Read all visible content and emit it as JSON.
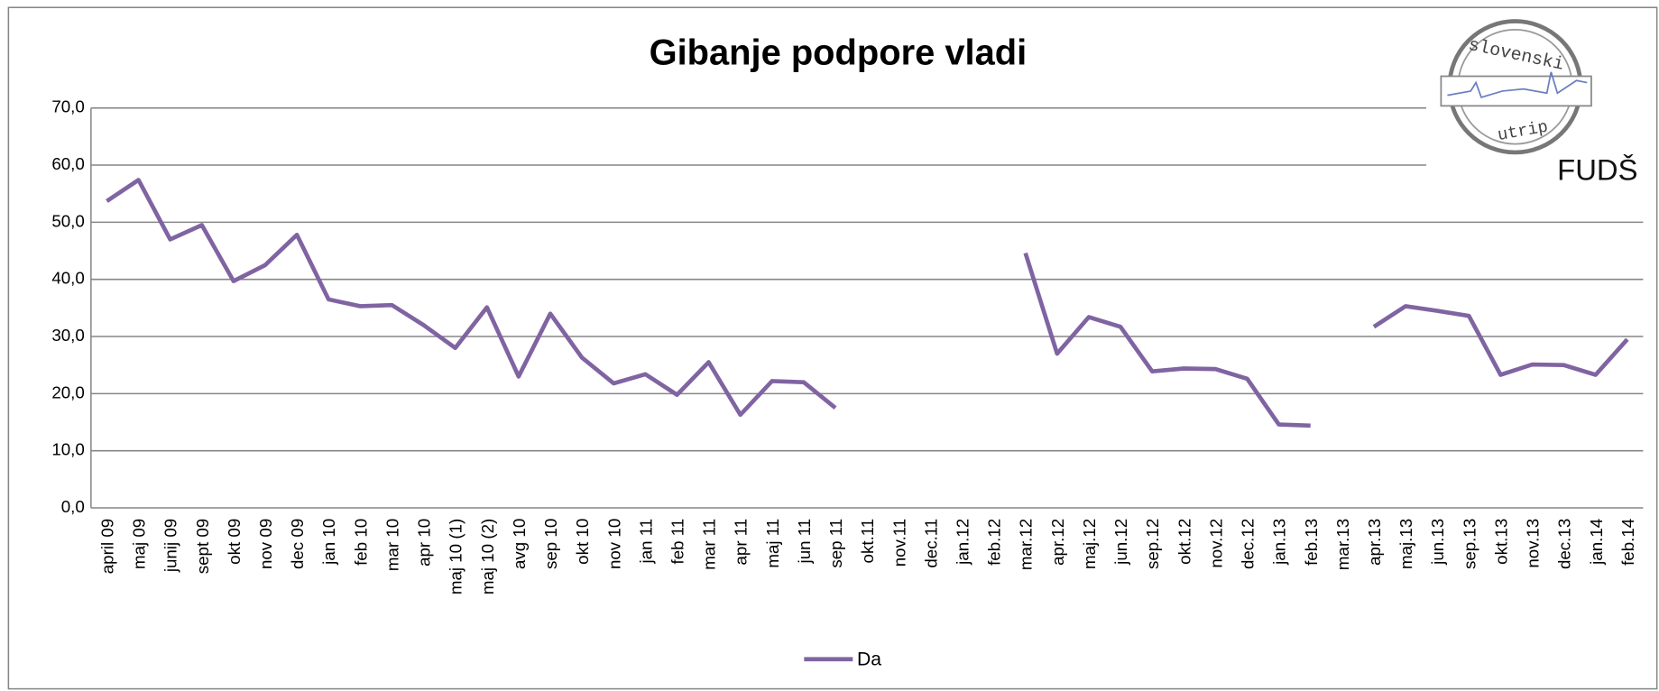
{
  "chart_data": {
    "type": "line",
    "title": "Gibanje podpore vladi",
    "logo": {
      "top": "slovenski",
      "bottom": "utrip",
      "brand": "FUDŠ"
    },
    "categories": [
      "april 09",
      "maj 09",
      "junij 09",
      "sept 09",
      "okt 09",
      "nov 09",
      "dec 09",
      "jan 10",
      "feb 10",
      "mar 10",
      "apr 10",
      "maj 10 (1)",
      "maj 10 (2)",
      "avg 10",
      "sep 10",
      "okt 10",
      "nov 10",
      "jan 11",
      "feb 11",
      "mar 11",
      "apr 11",
      "maj 11",
      "jun 11",
      "sep 11",
      "okt.11",
      "nov.11",
      "dec.11",
      "jan.12",
      "feb.12",
      "mar.12",
      "apr.12",
      "maj.12",
      "jun.12",
      "sep.12",
      "okt.12",
      "nov.12",
      "dec.12",
      "jan.13",
      "feb.13",
      "mar.13",
      "apr.13",
      "maj.13",
      "jun.13",
      "sep.13",
      "okt.13",
      "nov.13",
      "dec.13",
      "jan.14",
      "feb.14"
    ],
    "series": [
      {
        "name": "Da",
        "color": "#8064a2",
        "values": [
          53.7,
          57.4,
          47.0,
          49.5,
          39.7,
          42.5,
          47.8,
          36.5,
          35.3,
          35.5,
          32.0,
          28.0,
          35.1,
          23.0,
          34.0,
          26.3,
          21.8,
          23.4,
          19.8,
          25.5,
          16.3,
          22.2,
          22.0,
          17.5,
          null,
          null,
          null,
          null,
          null,
          44.6,
          27.0,
          33.4,
          31.7,
          23.9,
          24.4,
          24.3,
          22.6,
          14.6,
          14.4,
          null,
          31.7,
          35.3,
          34.5,
          33.6,
          23.3,
          25.1,
          25.0,
          23.3,
          29.5
        ]
      }
    ],
    "ylim": [
      0,
      70
    ],
    "yticks": [
      {
        "value": 0,
        "label": "0,0"
      },
      {
        "value": 10,
        "label": "10,0"
      },
      {
        "value": 20,
        "label": "20,0"
      },
      {
        "value": 30,
        "label": "30,0"
      },
      {
        "value": 40,
        "label": "40,0"
      },
      {
        "value": 50,
        "label": "50,0"
      },
      {
        "value": 60,
        "label": "60,0"
      },
      {
        "value": 70,
        "label": "70,0"
      }
    ],
    "grid": true,
    "legend": "bottom"
  }
}
